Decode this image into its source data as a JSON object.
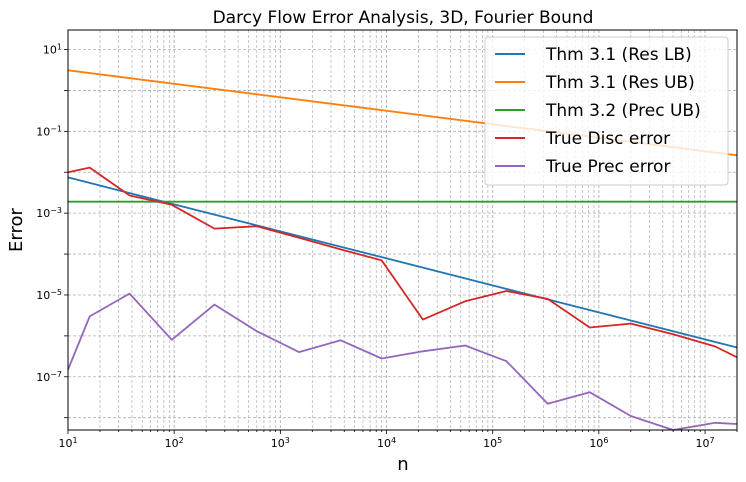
{
  "chart_data": {
    "type": "line",
    "title": "Darcy Flow Error Analysis, 3D, Fourier Bound",
    "xlabel": "n",
    "ylabel": "Error",
    "xscale": "log",
    "yscale": "log",
    "xlim": [
      10,
      20000000
    ],
    "ylim": [
      5e-09,
      30
    ],
    "grid": true,
    "legend_position": "top-right",
    "x_ticks": [
      {
        "value": 10,
        "base": "10",
        "exp": "1"
      },
      {
        "value": 100,
        "base": "10",
        "exp": "2"
      },
      {
        "value": 1000,
        "base": "10",
        "exp": "3"
      },
      {
        "value": 10000,
        "base": "10",
        "exp": "4"
      },
      {
        "value": 100000,
        "base": "10",
        "exp": "5"
      },
      {
        "value": 1000000,
        "base": "10",
        "exp": "6"
      },
      {
        "value": 10000000,
        "base": "10",
        "exp": "7"
      }
    ],
    "y_ticks": [
      {
        "value": 10,
        "base": "10",
        "exp": "1"
      },
      {
        "value": 0.1,
        "base": "10",
        "exp": "−1"
      },
      {
        "value": 0.001,
        "base": "10",
        "exp": "−3"
      },
      {
        "value": 1e-05,
        "base": "10",
        "exp": "−5"
      },
      {
        "value": 1e-07,
        "base": "10",
        "exp": "−7"
      }
    ],
    "series": [
      {
        "name": "Thm 3.1 (Res LB)",
        "color": "#1f77b4",
        "points": [
          [
            10,
            0.0075
          ],
          [
            20000000,
            5.2e-07
          ]
        ]
      },
      {
        "name": "Thm 3.1 (Res UB)",
        "color": "#ff7f0e",
        "points": [
          [
            10,
            3.1
          ],
          [
            20000000,
            0.026
          ]
        ]
      },
      {
        "name": "Thm 3.2 (Prec UB)",
        "color": "#2ca02c",
        "points": [
          [
            10,
            0.0019
          ],
          [
            20000000,
            0.0019
          ]
        ]
      },
      {
        "name": "True Disc error",
        "color": "#d62728",
        "points": [
          [
            10,
            0.01
          ],
          [
            16,
            0.013
          ],
          [
            38,
            0.0027
          ],
          [
            95,
            0.0016
          ],
          [
            240,
            0.00042
          ],
          [
            600,
            0.00048
          ],
          [
            1500,
            0.00025
          ],
          [
            3700,
            0.00013
          ],
          [
            9000,
            7e-05
          ],
          [
            22000,
            2.5e-06
          ],
          [
            55000,
            7e-06
          ],
          [
            135000,
            1.25e-05
          ],
          [
            330000,
            8e-06
          ],
          [
            820000,
            1.6e-06
          ],
          [
            2000000,
            2e-06
          ],
          [
            5000000,
            1.1e-06
          ],
          [
            12500000,
            5.5e-07
          ],
          [
            20000000,
            3e-07
          ]
        ]
      },
      {
        "name": "True Prec error",
        "color": "#9467bd",
        "points": [
          [
            10,
            1.5e-07
          ],
          [
            16,
            3e-06
          ],
          [
            38,
            1.08e-05
          ],
          [
            95,
            8e-07
          ],
          [
            240,
            5.8e-06
          ],
          [
            600,
            1.3e-06
          ],
          [
            1500,
            4e-07
          ],
          [
            3700,
            7.8e-07
          ],
          [
            9000,
            2.8e-07
          ],
          [
            22000,
            4.2e-07
          ],
          [
            55000,
            5.8e-07
          ],
          [
            135000,
            2.4e-07
          ],
          [
            330000,
            2.2e-08
          ],
          [
            820000,
            4.2e-08
          ],
          [
            2000000,
            1.1e-08
          ],
          [
            5000000,
            5e-09
          ],
          [
            12500000,
            7.5e-09
          ],
          [
            20000000,
            7e-09
          ]
        ]
      }
    ]
  }
}
